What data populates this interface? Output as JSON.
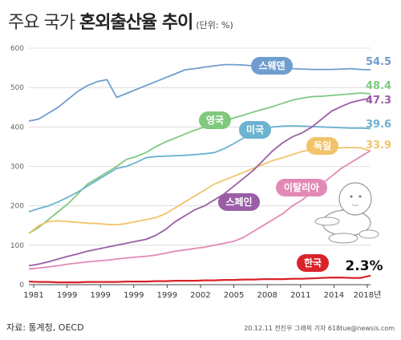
{
  "title": {
    "main": "주요 국가",
    "bold": "혼외출산율 추이",
    "unit": "(단위: %)"
  },
  "footer": {
    "source": "자료: 통계청, OECD",
    "credit": "20.12.11 전진우 그래픽 기자 618tue@newsis.com"
  },
  "chart_data": {
    "type": "line",
    "title": "주요 국가 혼외출산율 추이",
    "unit": "(단위: %)",
    "xlabel": "",
    "ylabel": "",
    "ylim": [
      0,
      600
    ],
    "yticks": [
      0,
      100,
      200,
      300,
      400,
      500,
      600
    ],
    "grid": true,
    "x_tick_labels": [
      "1981",
      "1999",
      "1999",
      "1999",
      "1999",
      "2002",
      "2005",
      "2008",
      "2011",
      "2014",
      "2018년"
    ],
    "series": [
      {
        "name": "스웨덴",
        "color": "#6f9dce",
        "end_label": "54.5",
        "values": [
          415,
          420,
          435,
          450,
          470,
          490,
          505,
          515,
          520,
          475,
          485,
          495,
          505,
          515,
          525,
          535,
          545,
          548,
          552,
          555,
          558,
          558,
          557,
          555,
          554,
          552,
          550,
          548,
          547,
          546,
          546,
          546,
          547,
          548,
          546,
          545
        ]
      },
      {
        "name": "영국",
        "color": "#7fc97f",
        "end_label": "48.4",
        "values": [
          130,
          145,
          165,
          185,
          205,
          230,
          255,
          270,
          285,
          300,
          318,
          325,
          335,
          350,
          362,
          372,
          382,
          392,
          400,
          408,
          415,
          423,
          430,
          438,
          445,
          452,
          460,
          468,
          473,
          477,
          478,
          480,
          482,
          484,
          486,
          484
        ]
      },
      {
        "name": "미국",
        "color": "#6bb3d0",
        "end_label": "39.6",
        "values": [
          185,
          193,
          200,
          210,
          222,
          235,
          250,
          265,
          280,
          295,
          300,
          310,
          322,
          325,
          326,
          327,
          328,
          330,
          332,
          335,
          345,
          358,
          372,
          385,
          395,
          400,
          402,
          403,
          402,
          401,
          400,
          399,
          398,
          397,
          397,
          396
        ]
      },
      {
        "name": "독일",
        "color": "#f1c46b",
        "end_label": "33.9",
        "values": [
          130,
          150,
          160,
          162,
          160,
          158,
          156,
          155,
          153,
          152,
          155,
          160,
          165,
          170,
          180,
          195,
          210,
          225,
          240,
          255,
          265,
          275,
          285,
          295,
          305,
          315,
          322,
          330,
          338,
          342,
          344,
          346,
          347,
          348,
          347,
          339
        ]
      },
      {
        "name": "스페인",
        "color": "#9b5ea6",
        "end_label": "47.3",
        "values": [
          48,
          52,
          58,
          65,
          72,
          78,
          85,
          90,
          95,
          100,
          105,
          110,
          115,
          125,
          140,
          160,
          175,
          190,
          200,
          215,
          230,
          250,
          270,
          290,
          315,
          340,
          360,
          375,
          385,
          400,
          420,
          440,
          452,
          462,
          468,
          473
        ]
      },
      {
        "name": "이탈리아",
        "color": "#e28ab6",
        "end_label": "",
        "values": [
          40,
          42,
          45,
          48,
          52,
          55,
          58,
          60,
          62,
          65,
          68,
          70,
          72,
          75,
          80,
          85,
          88,
          92,
          95,
          100,
          105,
          110,
          120,
          135,
          150,
          165,
          180,
          200,
          215,
          235,
          255,
          275,
          295,
          310,
          325,
          340
        ]
      },
      {
        "name": "한국",
        "color": "#d9232a",
        "end_label": "2.3%",
        "values": [
          8,
          7,
          7,
          6,
          6,
          6,
          7,
          7,
          7,
          7,
          8,
          8,
          8,
          9,
          9,
          10,
          10,
          10,
          11,
          11,
          12,
          12,
          13,
          13,
          14,
          14,
          14,
          15,
          15,
          16,
          17,
          18,
          18,
          17,
          17,
          23
        ]
      }
    ]
  }
}
